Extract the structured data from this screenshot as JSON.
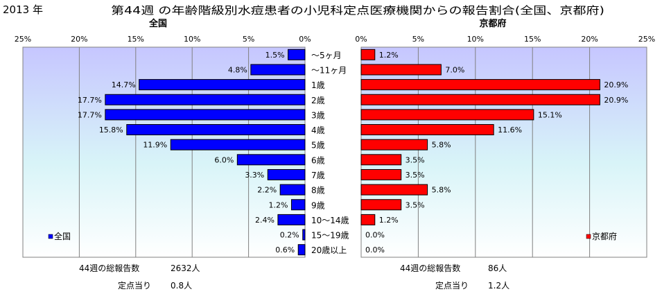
{
  "header": {
    "year": "2013 年",
    "title": "第44週 の年齢階級別水痘患者の小児科定点医療機関からの報告割合(全国、京都府)"
  },
  "chart_data": [
    {
      "type": "bar",
      "orientation": "horizontal",
      "direction": "right-to-left",
      "title": "全国",
      "legend": "全国",
      "legend_position": "bottom-left",
      "color": "#0000ff",
      "xlim": [
        0,
        25
      ],
      "x_ticks": [
        "25%",
        "20%",
        "15%",
        "10%",
        "5%",
        "0%"
      ],
      "grid": true,
      "categories": [
        "～5ヶ月",
        "～11ヶ月",
        "1歳",
        "2歳",
        "3歳",
        "4歳",
        "5歳",
        "6歳",
        "7歳",
        "8歳",
        "9歳",
        "10～14歳",
        "15～19歳",
        "20歳以上"
      ],
      "values": [
        1.5,
        4.8,
        14.7,
        17.7,
        17.7,
        15.8,
        11.9,
        6.0,
        3.3,
        2.2,
        1.2,
        2.4,
        0.2,
        0.6
      ],
      "labels": [
        "1.5%",
        "4.8%",
        "14.7%",
        "17.7%",
        "17.7%",
        "15.8%",
        "11.9%",
        "6.0%",
        "3.3%",
        "2.2%",
        "1.2%",
        "2.4%",
        "0.2%",
        "0.6%"
      ]
    },
    {
      "type": "bar",
      "orientation": "horizontal",
      "direction": "left-to-right",
      "title": "京都府",
      "legend": "京都府",
      "legend_position": "bottom-right",
      "color": "#ff0000",
      "xlim": [
        0,
        25
      ],
      "x_ticks": [
        "0%",
        "5%",
        "10%",
        "15%",
        "20%",
        "25%"
      ],
      "grid": true,
      "categories": [
        "～5ヶ月",
        "～11ヶ月",
        "1歳",
        "2歳",
        "3歳",
        "4歳",
        "5歳",
        "6歳",
        "7歳",
        "8歳",
        "9歳",
        "10～14歳",
        "15～19歳",
        "20歳以上"
      ],
      "values": [
        1.2,
        7.0,
        20.9,
        20.9,
        15.1,
        11.6,
        5.8,
        3.5,
        3.5,
        5.8,
        3.5,
        1.2,
        0.0,
        0.0
      ],
      "labels": [
        "1.2%",
        "7.0%",
        "20.9%",
        "20.9%",
        "15.1%",
        "11.6%",
        "5.8%",
        "3.5%",
        "3.5%",
        "5.8%",
        "3.5%",
        "1.2%",
        "0.0%",
        "0.0%"
      ]
    }
  ],
  "footer": {
    "national": {
      "total_label": "44週の総報告数",
      "total_value": "2632人",
      "per_label": "定点当り",
      "per_value": "0.8人"
    },
    "kyoto": {
      "total_label": "44週の総報告数",
      "total_value": "86人",
      "per_label": "定点当り",
      "per_value": "1.2人"
    }
  }
}
